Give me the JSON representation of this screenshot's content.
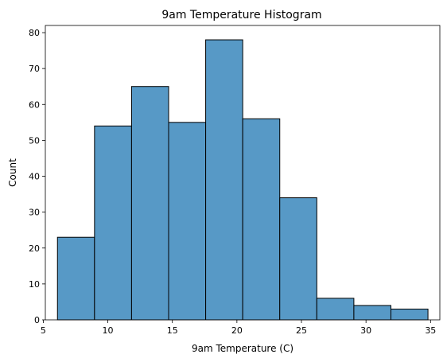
{
  "chart_data": {
    "type": "bar",
    "title": "9am Temperature Histogram",
    "xlabel": "9am Temperature (C)",
    "ylabel": "Count",
    "xlim": [
      5.16,
      35.72
    ],
    "ylim": [
      0,
      82
    ],
    "xticks": [
      5,
      10,
      15,
      20,
      25,
      30,
      35
    ],
    "yticks": [
      0,
      10,
      20,
      30,
      40,
      50,
      60,
      70,
      80
    ],
    "bin_edges": [
      6.1,
      8.97,
      11.84,
      14.71,
      17.58,
      20.45,
      23.32,
      26.19,
      29.06,
      31.93,
      34.8
    ],
    "values": [
      23,
      54,
      65,
      55,
      78,
      56,
      34,
      6,
      4,
      3
    ],
    "bar_color": "#5799c6",
    "edge_color": "#000000",
    "grid": false
  }
}
